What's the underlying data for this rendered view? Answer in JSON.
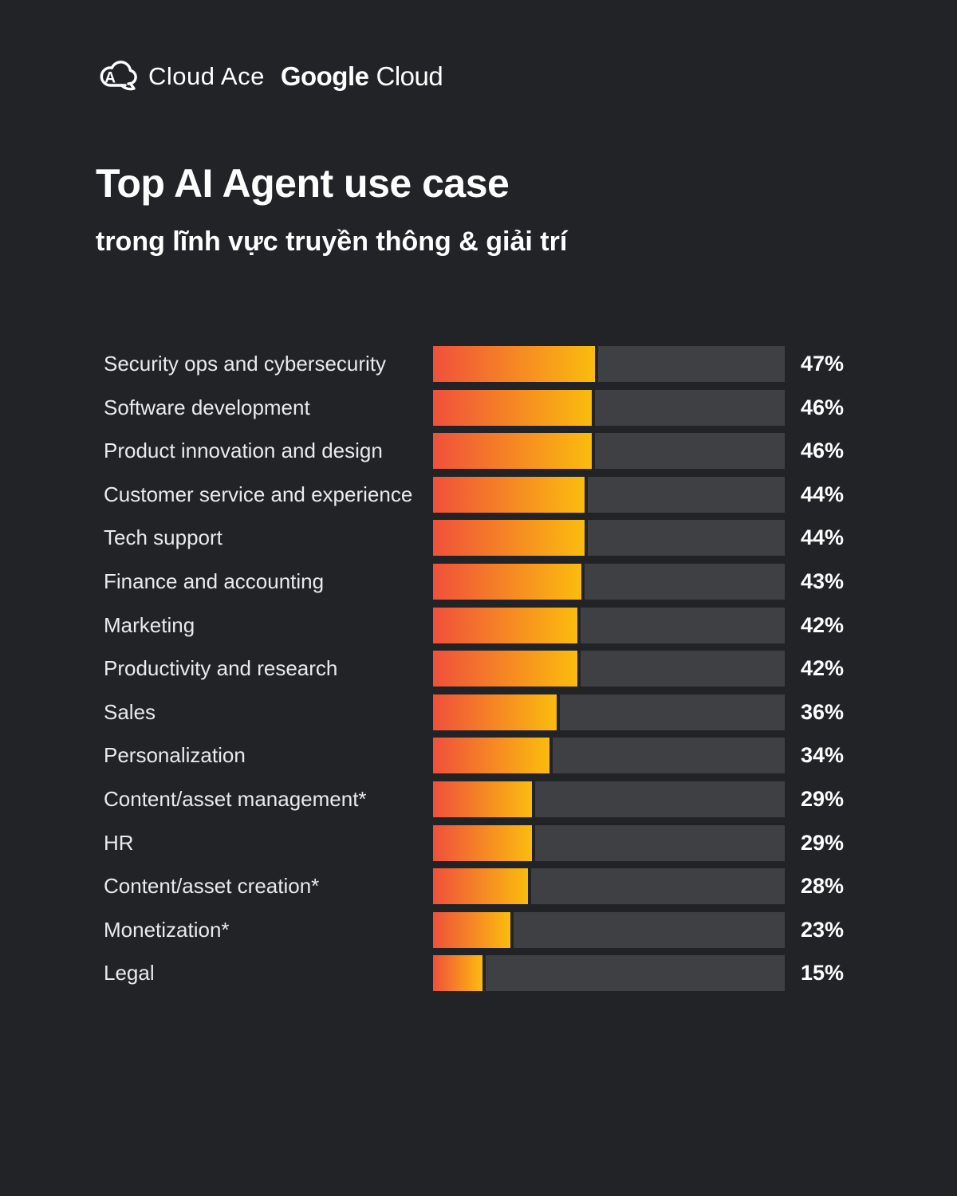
{
  "header": {
    "cloud_ace": "Cloud Ace",
    "google_word": "Google",
    "cloud_word": "Cloud"
  },
  "title": "Top AI Agent use case",
  "subtitle": "trong lĩnh vực truyền thông & giải trí",
  "colors": {
    "background": "#212326",
    "track": "#3E4044",
    "bar_gradient_start": "#F0503B",
    "bar_gradient_end": "#FBBC0E",
    "label_text": "#E8EAED",
    "value_text": "#FFFFFF"
  },
  "chart_data": {
    "type": "bar",
    "orientation": "horizontal",
    "title": "Top AI Agent use case",
    "subtitle": "trong lĩnh vực truyền thông & giải trí",
    "categories": [
      "Security ops and cybersecurity",
      "Software development",
      "Product innovation and design",
      "Customer service and experience",
      "Tech support",
      "Finance and accounting",
      "Marketing",
      "Productivity and research",
      "Sales",
      "Personalization",
      "Content/asset management*",
      "HR",
      "Content/asset creation*",
      "Monetization*",
      "Legal"
    ],
    "values": [
      47,
      46,
      46,
      44,
      44,
      43,
      42,
      42,
      36,
      34,
      29,
      29,
      28,
      23,
      15
    ],
    "value_suffix": "%",
    "xlim": [
      0,
      100
    ],
    "grid": false,
    "legend": false,
    "value_labels_position": "right-of-track",
    "bar_gradient": [
      "#F0503B",
      "#FBBC0E"
    ],
    "track_color": "#3E4044"
  }
}
